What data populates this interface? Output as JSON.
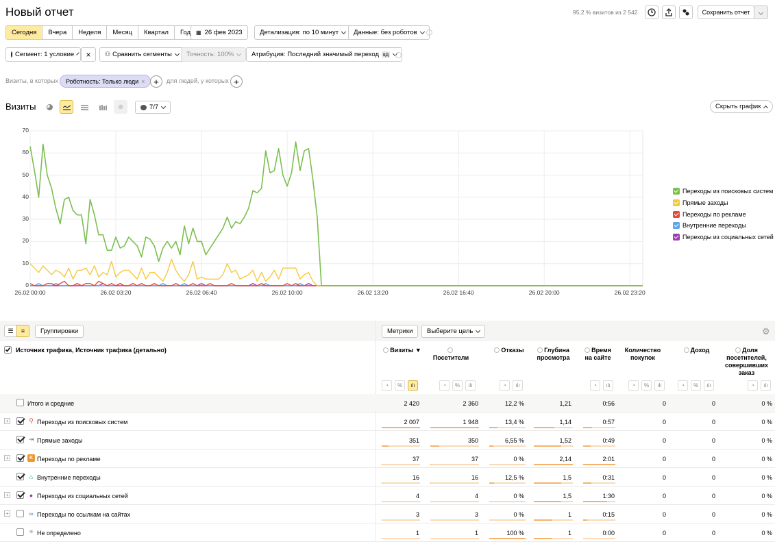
{
  "header": {
    "title": "Новый отчет",
    "visits_info": "95,2 % визитов из 2 542",
    "save_label": "Сохранить отчет"
  },
  "toolbar": {
    "periods": [
      "Сегодня",
      "Вчера",
      "Неделя",
      "Месяц",
      "Квартал",
      "Год"
    ],
    "active_period": "Сегодня",
    "date": "26 фев 2023",
    "detail": "Детализация: по 10 минут",
    "data": "Данные: без роботов"
  },
  "segment": {
    "segment_label": "Сегмент: 1 условие",
    "compare_label": "Сравнить сегменты",
    "accuracy_label": "Точность: 100%",
    "attribution_label": "Атрибуция: Последний значимый переход",
    "attribution_badge": "кд"
  },
  "filters": {
    "visits_where": "Визиты, в которых",
    "robot_chip": "Роботность: Только люди",
    "for_people": "для людей, у которых"
  },
  "chart_header": {
    "title": "Визиты",
    "counter": "7/7",
    "hide_chart": "Скрыть график"
  },
  "colors": {
    "search": "#7cbf4f",
    "direct": "#f5c842",
    "ads": "#e8473a",
    "internal": "#5aa6e8",
    "social": "#9b3fb0",
    "accent": "#ffeba0"
  },
  "chart_data": {
    "type": "line",
    "ylim": [
      0,
      70
    ],
    "yticks": [
      "0",
      "10",
      "20",
      "30",
      "40",
      "50",
      "60",
      "70"
    ],
    "xticks": [
      "26.02 00:00",
      "26.02 03:20",
      "26.02 06:40",
      "26.02 10:00",
      "26.02 13:20",
      "26.02 16:40",
      "26.02 20:00",
      "26.02 23:20"
    ],
    "x_start": "26.02 00:00",
    "x_step": "10 минут",
    "series": [
      {
        "name": "Переходы из поисковых систем",
        "values": [
          63,
          52,
          40,
          64,
          50,
          44,
          35,
          28,
          39,
          40,
          34,
          32,
          32,
          19,
          39,
          32,
          23,
          23,
          16,
          16,
          22,
          17,
          18,
          22,
          20,
          18,
          13,
          22,
          21,
          18,
          11,
          17,
          20,
          17,
          20,
          14,
          27,
          19,
          26,
          20,
          20,
          14,
          17,
          20,
          23,
          26,
          31,
          26,
          29,
          28,
          31,
          35,
          43,
          42,
          44,
          61,
          51,
          52,
          62,
          50,
          45,
          51,
          65,
          52,
          61,
          62,
          48,
          31,
          0,
          0,
          0,
          0,
          0,
          0,
          0,
          0,
          0,
          0,
          0,
          0,
          0,
          0,
          0,
          0,
          0,
          0,
          0,
          0,
          0,
          0,
          0,
          0,
          0,
          0,
          0,
          0,
          0,
          0,
          0,
          0,
          0,
          0,
          0,
          0,
          0,
          0,
          0,
          0,
          0,
          0,
          0,
          0,
          0,
          0,
          0,
          0,
          0,
          0,
          0,
          0,
          0,
          0,
          0,
          0,
          0,
          0,
          0,
          0,
          0,
          0,
          0,
          0,
          0,
          0,
          0,
          0,
          0,
          0,
          0,
          0,
          0,
          0,
          0,
          0
        ]
      },
      {
        "name": "Прямые заходы",
        "values": [
          10,
          8,
          6,
          9,
          7,
          5,
          7,
          6,
          4,
          8,
          3,
          7,
          7,
          8,
          5,
          9,
          4,
          6,
          5,
          11,
          4,
          6,
          7,
          7,
          5,
          3,
          8,
          3,
          6,
          6,
          4,
          2,
          6,
          12,
          7,
          4,
          2,
          5,
          11,
          3,
          4,
          3,
          3,
          3,
          3,
          5,
          10,
          6,
          7,
          3,
          4,
          5,
          7,
          2,
          6,
          2,
          4,
          7,
          3,
          8,
          8,
          8,
          8,
          3,
          5,
          6,
          2,
          0,
          0,
          0,
          0,
          0,
          0,
          0,
          0,
          0,
          0,
          0,
          0,
          0,
          0,
          0,
          0,
          0,
          0,
          0,
          0,
          0,
          0,
          0,
          0,
          0,
          0,
          0,
          0,
          0,
          0,
          0,
          0,
          0,
          0,
          0,
          0,
          0,
          0,
          0,
          0,
          0,
          0,
          0,
          0,
          0,
          0,
          0,
          0,
          0,
          0,
          0,
          0,
          0,
          0,
          0,
          0,
          0,
          0,
          0,
          0,
          0,
          0,
          0,
          0,
          0,
          0,
          0,
          0,
          0,
          0,
          0,
          0,
          0,
          0,
          0,
          0,
          0
        ]
      },
      {
        "name": "Переходы по рекламе",
        "values": [
          1,
          0,
          0,
          0,
          1,
          1,
          0,
          1,
          2,
          0,
          0,
          1,
          0,
          1,
          1,
          0,
          2,
          1,
          0,
          1,
          0,
          1,
          0,
          0,
          1,
          0,
          1,
          0,
          0,
          1,
          0,
          0,
          0,
          0,
          1,
          0,
          0,
          0,
          1,
          0,
          0,
          0,
          1,
          0,
          0,
          0,
          0,
          1,
          0,
          0,
          0,
          0,
          0,
          0,
          1,
          0,
          0,
          0,
          0,
          0,
          1,
          0,
          1,
          0,
          0,
          0,
          0,
          0,
          0,
          0,
          0,
          0,
          0,
          0,
          0,
          0,
          0,
          0,
          0,
          0,
          0,
          0,
          0,
          0,
          0,
          0,
          0,
          0,
          0,
          0,
          0,
          0,
          0,
          0,
          0,
          0,
          0,
          0,
          0,
          0,
          0,
          0,
          0,
          0,
          0,
          0,
          0,
          0,
          0,
          0,
          0,
          0,
          0,
          0,
          0,
          0,
          0,
          0,
          0,
          0,
          0,
          0,
          0,
          0,
          0,
          0,
          0,
          0,
          0,
          0,
          0,
          0,
          0,
          0,
          0,
          0,
          0,
          0,
          0,
          0,
          0,
          0,
          0,
          0
        ]
      },
      {
        "name": "Внутренние переходы",
        "values": [
          0,
          0,
          1,
          0,
          0,
          0,
          1,
          0,
          0,
          0,
          0,
          1,
          0,
          0,
          0,
          0,
          0,
          0,
          0,
          0,
          0,
          1,
          0,
          0,
          0,
          0,
          0,
          0,
          0,
          0,
          0,
          1,
          0,
          0,
          0,
          0,
          1,
          0,
          0,
          0,
          0,
          0,
          0,
          0,
          0,
          0,
          0,
          0,
          0,
          0,
          0,
          0,
          0,
          0,
          0,
          1,
          0,
          0,
          0,
          0,
          0,
          0,
          0,
          1,
          0,
          0,
          0,
          0,
          0,
          0,
          0,
          0,
          0,
          0,
          0,
          0,
          0,
          0,
          0,
          0,
          0,
          0,
          0,
          0,
          0,
          0,
          0,
          0,
          0,
          0,
          0,
          0,
          0,
          0,
          0,
          0,
          0,
          0,
          0,
          0,
          0,
          0,
          0,
          0,
          0,
          0,
          0,
          0,
          0,
          0,
          0,
          0,
          0,
          0,
          0,
          0,
          0,
          0,
          0,
          0,
          0,
          0,
          0,
          0,
          0,
          0,
          0,
          0,
          0,
          0,
          0,
          0,
          0,
          0,
          0,
          0,
          0,
          0,
          0,
          0,
          0,
          0,
          0,
          0
        ]
      },
      {
        "name": "Переходы из социальных сетей",
        "values": [
          0,
          0,
          0,
          0,
          0,
          0,
          0,
          0,
          0,
          0,
          0,
          0,
          0,
          0,
          0,
          0,
          0,
          1,
          0,
          0,
          0,
          0,
          0,
          0,
          0,
          0,
          0,
          0,
          0,
          0,
          0,
          0,
          0,
          0,
          0,
          0,
          0,
          0,
          0,
          0,
          1,
          0,
          0,
          0,
          0,
          0,
          0,
          0,
          0,
          0,
          0,
          0,
          1,
          0,
          0,
          0,
          0,
          0,
          0,
          0,
          0,
          0,
          0,
          0,
          0,
          1,
          0,
          0,
          0,
          0,
          0,
          0,
          0,
          0,
          0,
          0,
          0,
          0,
          0,
          0,
          0,
          0,
          0,
          0,
          0,
          0,
          0,
          0,
          0,
          0,
          0,
          0,
          0,
          0,
          0,
          0,
          0,
          0,
          0,
          0,
          0,
          0,
          0,
          0,
          0,
          0,
          0,
          0,
          0,
          0,
          0,
          0,
          0,
          0,
          0,
          0,
          0,
          0,
          0,
          0,
          0,
          0,
          0,
          0,
          0,
          0,
          0,
          0,
          0,
          0,
          0,
          0,
          0,
          0,
          0,
          0,
          0,
          0,
          0,
          0,
          0,
          0,
          0,
          0
        ]
      }
    ]
  },
  "table": {
    "view_toggle": [
      "список",
      "дерево"
    ],
    "groupings": "Группировки",
    "metrics": "Метрики",
    "goal": "Выберите цель",
    "dimension_header": "Источник трафика, Источник трафика (детально)",
    "columns": [
      {
        "label": "Визиты ▼",
        "lines": [
          "Визиты ▼"
        ]
      },
      {
        "label": "Посетители",
        "lines": [
          "Посетители"
        ]
      },
      {
        "label": "Отказы",
        "lines": [
          "Отказы"
        ]
      },
      {
        "label": "Глубина просмотра",
        "lines": [
          "Глубина",
          "просмотра"
        ]
      },
      {
        "label": "Время на сайте",
        "lines": [
          "Время",
          "на сайте"
        ]
      },
      {
        "label": "Количество покупок",
        "lines": [
          "Количество",
          "покупок"
        ]
      },
      {
        "label": "Доход",
        "lines": [
          "Доход"
        ]
      },
      {
        "label": "Доля посетителей, совершивших заказ",
        "lines": [
          "Доля",
          "посетителей,",
          "совершивших",
          "заказ"
        ]
      }
    ],
    "mini_labels": [
      "◔",
      "%",
      "ılı"
    ],
    "total": {
      "name": "Итого и средние",
      "values": [
        "2 420",
        "2 360",
        "12,2 %",
        "1,21",
        "0:56",
        "0",
        "0",
        "0 %"
      ]
    },
    "rows": [
      {
        "name": "Переходы из поисковых систем",
        "icon": "search-icon",
        "glyph": "⚲",
        "plus": true,
        "checked": true,
        "values": [
          "2 007",
          "1 948",
          "13,4 %",
          "1,14",
          "0:57",
          "0",
          "0",
          "0 %"
        ],
        "fractions": [
          1.0,
          1.0,
          0.22,
          0.53,
          0.28
        ]
      },
      {
        "name": "Прямые заходы",
        "icon": "direct-icon",
        "glyph": "⇥",
        "plus": false,
        "checked": true,
        "values": [
          "351",
          "350",
          "6,55 %",
          "1,52",
          "0:49",
          "0",
          "0",
          "0 %"
        ],
        "fractions": [
          0.17,
          0.18,
          0.11,
          0.71,
          0.24
        ]
      },
      {
        "name": "Переходы по рекламе",
        "icon": "ads-icon",
        "glyph": "K",
        "plus": true,
        "checked": true,
        "values": [
          "37",
          "37",
          "0 %",
          "2,14",
          "2:01",
          "0",
          "0",
          "0 %"
        ],
        "fractions": [
          0.02,
          0.02,
          0.0,
          1.0,
          1.0
        ]
      },
      {
        "name": "Внутренние переходы",
        "icon": "home-icon",
        "glyph": "⌂",
        "plus": false,
        "checked": true,
        "values": [
          "16",
          "16",
          "12,5 %",
          "1,5",
          "0:31",
          "0",
          "0",
          "0 %"
        ],
        "fractions": [
          0.01,
          0.01,
          0.13,
          0.7,
          0.26
        ]
      },
      {
        "name": "Переходы из социальных сетей",
        "icon": "social-icon",
        "glyph": "●",
        "plus": true,
        "checked": true,
        "values": [
          "4",
          "4",
          "0 %",
          "1,5",
          "1:30",
          "0",
          "0",
          "0 %"
        ],
        "fractions": [
          0.0,
          0.0,
          0.0,
          0.7,
          0.74
        ]
      },
      {
        "name": "Переходы по ссылкам на сайтах",
        "icon": "link-icon",
        "glyph": "∞",
        "plus": true,
        "checked": false,
        "values": [
          "3",
          "3",
          "0 %",
          "1",
          "0:15",
          "0",
          "0",
          "0 %"
        ],
        "fractions": [
          0.0,
          0.0,
          0.0,
          0.47,
          0.12
        ]
      },
      {
        "name": "Не определено",
        "icon": "undefined-icon",
        "glyph": "✳",
        "plus": false,
        "checked": false,
        "values": [
          "1",
          "1",
          "100 %",
          "1",
          "0:00",
          "0",
          "0",
          "0 %"
        ],
        "fractions": [
          0.0,
          0.0,
          1.0,
          0.47,
          0.0
        ]
      }
    ]
  }
}
